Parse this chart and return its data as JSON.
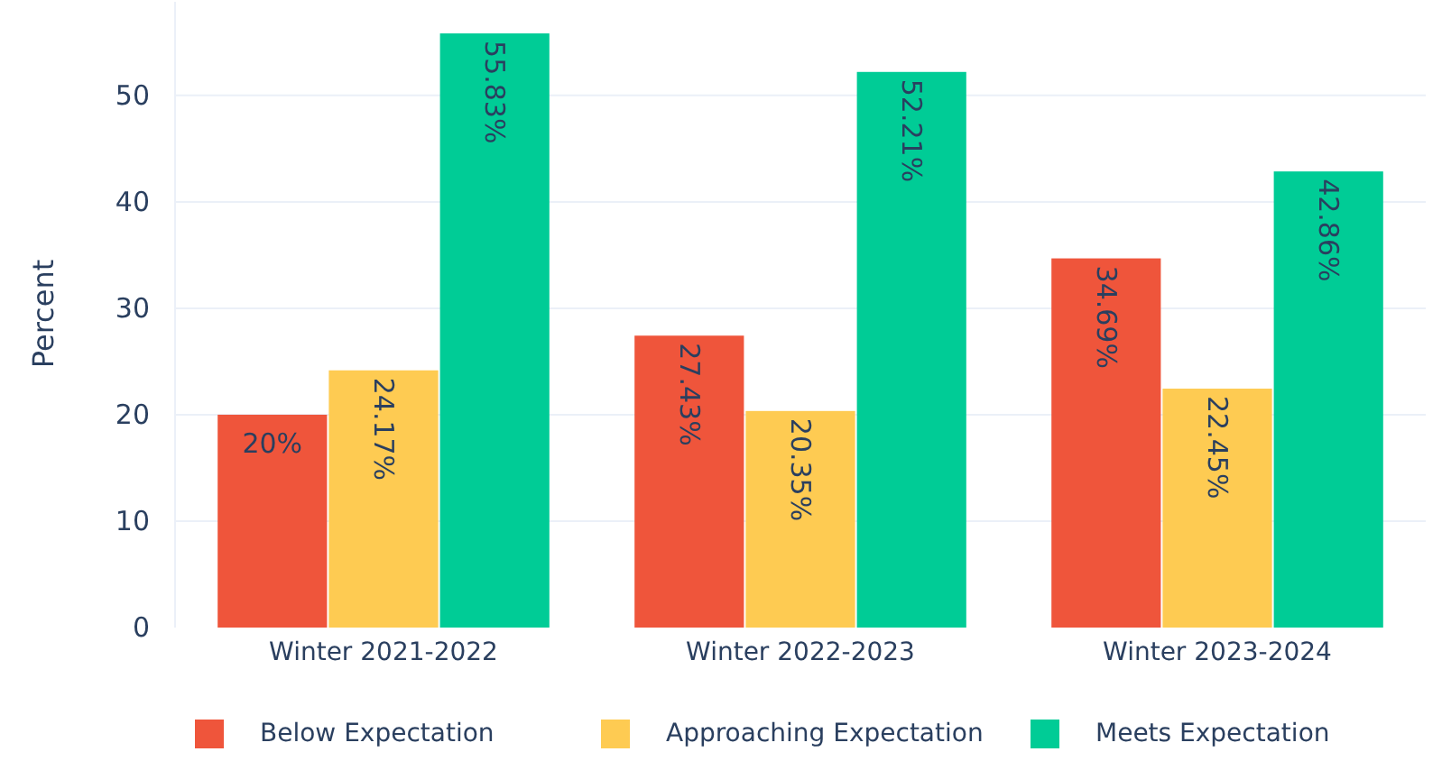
{
  "chart_data": {
    "type": "bar",
    "ylabel": "Percent",
    "categories": [
      "Winter 2021-2022",
      "Winter 2022-2023",
      "Winter 2023-2024"
    ],
    "series": [
      {
        "name": "Below Expectation",
        "color": "#ef553b",
        "values": [
          20,
          27.43,
          34.69
        ],
        "value_labels": [
          "20%",
          "27.43%",
          "34.69%"
        ]
      },
      {
        "name": "Approaching Expectation",
        "color": "#fecb52",
        "values": [
          24.17,
          20.35,
          22.45
        ],
        "value_labels": [
          "24.17%",
          "20.35%",
          "22.45%"
        ]
      },
      {
        "name": "Meets Expectation",
        "color": "#00cc96",
        "values": [
          55.83,
          52.21,
          42.86
        ],
        "value_labels": [
          "55.83%",
          "52.21%",
          "42.86%"
        ]
      }
    ],
    "ylim": [
      0,
      58.8
    ],
    "yticks": [
      0,
      10,
      20,
      30,
      40,
      50
    ],
    "grid": "y",
    "legend": "bottom"
  }
}
